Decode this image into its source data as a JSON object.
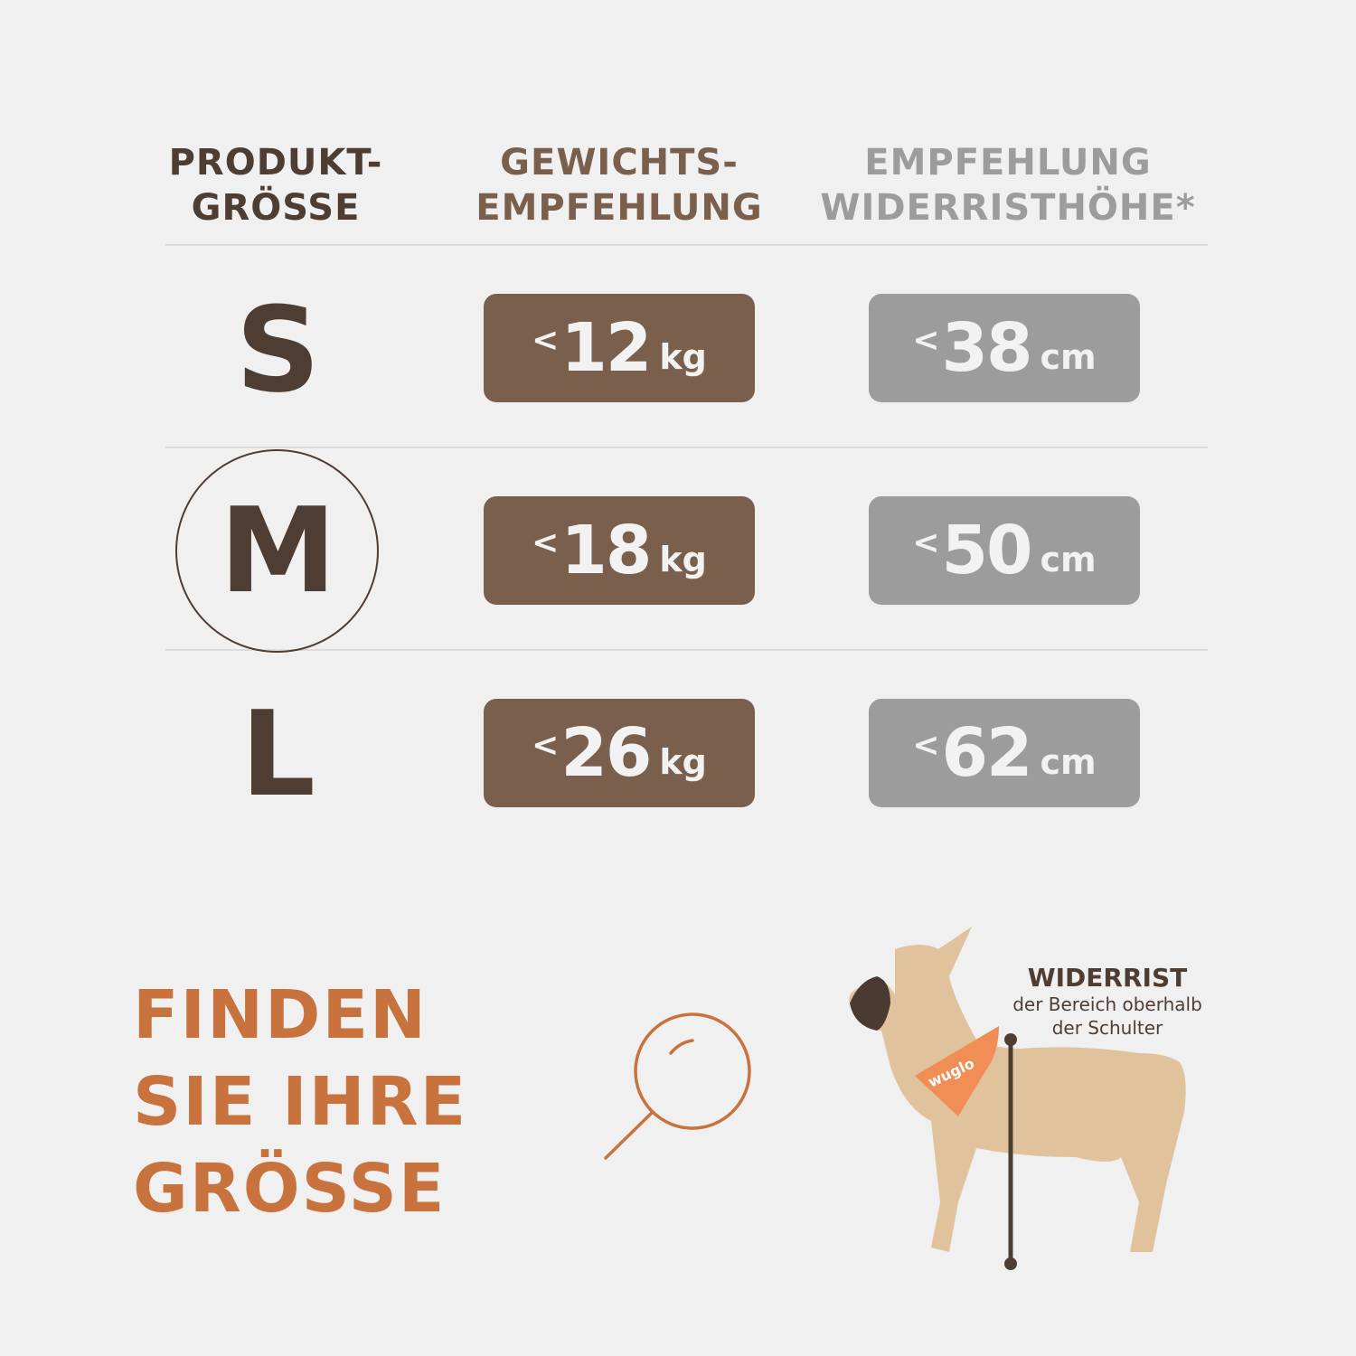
{
  "headers": {
    "size": [
      "PRODUKT-",
      "GRÖSSE"
    ],
    "weight": [
      "GEWICHTS-",
      "EMPFEHLUNG"
    ],
    "height": [
      "EMPFEHLUNG",
      "WIDERRISTHÖHE*"
    ]
  },
  "rows": [
    {
      "size": "S",
      "weight_prefix": "<",
      "weight": "12",
      "weight_unit": "kg",
      "height_prefix": "<",
      "height": "38",
      "height_unit": "cm",
      "highlighted": false
    },
    {
      "size": "M",
      "weight_prefix": "<",
      "weight": "18",
      "weight_unit": "kg",
      "height_prefix": "<",
      "height": "50",
      "height_unit": "cm",
      "highlighted": true
    },
    {
      "size": "L",
      "weight_prefix": "<",
      "weight": "26",
      "weight_unit": "kg",
      "height_prefix": "<",
      "height": "62",
      "height_unit": "cm",
      "highlighted": false
    }
  ],
  "headline": [
    "FINDEN",
    "SIE IHRE",
    "GRÖSSE"
  ],
  "icon": "magnifier-icon",
  "annotation": {
    "title": "WIDERRIST",
    "lines": [
      "der Bereich oberhalb",
      "der Schulter"
    ]
  },
  "bandana_logo": "wuglo",
  "colors": {
    "background": "#f0f0f0",
    "dark_brown": "#4e3d33",
    "brown": "#7a5f4c",
    "gray": "#9d9c9c",
    "orange": "#c8733e"
  }
}
